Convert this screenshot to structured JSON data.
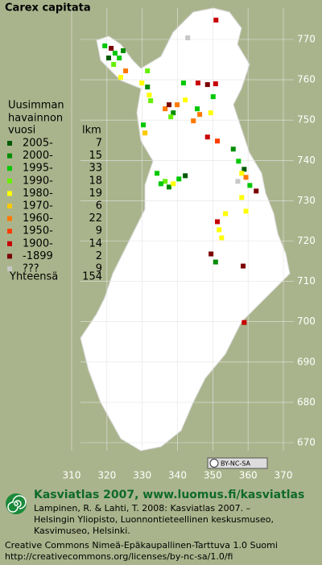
{
  "title": "Carex capitata",
  "legend": {
    "heading": [
      "Uusimman",
      "havainnon"
    ],
    "col_period": "vuosi",
    "col_count": "lkm",
    "rows": [
      {
        "period": "2005-",
        "count": "7",
        "color": "#005a00"
      },
      {
        "period": "2000-",
        "count": "15",
        "color": "#008c00"
      },
      {
        "period": "1995-",
        "count": "33",
        "color": "#00c800"
      },
      {
        "period": "1990-",
        "count": "18",
        "color": "#64f000"
      },
      {
        "period": "1980-",
        "count": "19",
        "color": "#ffff00"
      },
      {
        "period": "1970-",
        "count": "6",
        "color": "#ffc800"
      },
      {
        "period": "1960-",
        "count": "22",
        "color": "#ff7800"
      },
      {
        "period": "1950-",
        "count": "9",
        "color": "#ff3c00"
      },
      {
        "period": "1900-",
        "count": "14",
        "color": "#c80000"
      },
      {
        "period": "-1899",
        "count": "2",
        "color": "#7a0000"
      },
      {
        "period": "???",
        "count": "9",
        "color": "#c8c8c8"
      }
    ],
    "total_label": "Yhteensä",
    "total": "154"
  },
  "map": {
    "northing_ticks": [
      770,
      760,
      750,
      740,
      730,
      720,
      710,
      700,
      690,
      680,
      670
    ],
    "easting_ticks": [
      310,
      320,
      330,
      340,
      350,
      360,
      370
    ],
    "points": [
      {
        "e": 342.9,
        "n": 770.4,
        "period": 10
      },
      {
        "e": 350.9,
        "n": 774.8,
        "period": 8
      },
      {
        "e": 319.4,
        "n": 768.4,
        "period": 2
      },
      {
        "e": 321.2,
        "n": 767.8,
        "period": 9
      },
      {
        "e": 322.3,
        "n": 766.6,
        "period": 2
      },
      {
        "e": 320.5,
        "n": 765.4,
        "period": 0
      },
      {
        "e": 323.5,
        "n": 765.4,
        "period": 2
      },
      {
        "e": 321.9,
        "n": 763.8,
        "period": 3
      },
      {
        "e": 324.6,
        "n": 767.2,
        "period": 1
      },
      {
        "e": 325.3,
        "n": 762.2,
        "period": 6
      },
      {
        "e": 323.9,
        "n": 760.6,
        "period": 4
      },
      {
        "e": 331.5,
        "n": 762.2,
        "period": 3
      },
      {
        "e": 329.9,
        "n": 759.2,
        "period": 4
      },
      {
        "e": 331.5,
        "n": 758.2,
        "period": 1
      },
      {
        "e": 332.0,
        "n": 756.2,
        "period": 4
      },
      {
        "e": 332.4,
        "n": 754.8,
        "period": 3
      },
      {
        "e": 330.3,
        "n": 748.8,
        "period": 2
      },
      {
        "e": 330.8,
        "n": 746.8,
        "period": 5
      },
      {
        "e": 336.5,
        "n": 752.8,
        "period": 6
      },
      {
        "e": 337.6,
        "n": 753.8,
        "period": 9
      },
      {
        "e": 338.8,
        "n": 751.8,
        "period": 1
      },
      {
        "e": 339.9,
        "n": 753.8,
        "period": 6
      },
      {
        "e": 338.1,
        "n": 750.8,
        "period": 3
      },
      {
        "e": 345.6,
        "n": 752.8,
        "period": 2
      },
      {
        "e": 346.3,
        "n": 751.4,
        "period": 6
      },
      {
        "e": 344.5,
        "n": 749.8,
        "period": 6
      },
      {
        "e": 342.2,
        "n": 755.0,
        "period": 4
      },
      {
        "e": 341.7,
        "n": 759.2,
        "period": 2
      },
      {
        "e": 345.8,
        "n": 759.2,
        "period": 8
      },
      {
        "e": 348.5,
        "n": 758.8,
        "period": 9
      },
      {
        "e": 350.8,
        "n": 759.0,
        "period": 8
      },
      {
        "e": 350.1,
        "n": 755.8,
        "period": 2
      },
      {
        "e": 349.4,
        "n": 751.8,
        "period": 4
      },
      {
        "e": 348.5,
        "n": 745.8,
        "period": 8
      },
      {
        "e": 351.3,
        "n": 744.8,
        "period": 7
      },
      {
        "e": 355.8,
        "n": 742.8,
        "period": 1
      },
      {
        "e": 357.3,
        "n": 739.8,
        "period": 2
      },
      {
        "e": 358.9,
        "n": 737.8,
        "period": 0
      },
      {
        "e": 358.2,
        "n": 736.8,
        "period": 4
      },
      {
        "e": 359.4,
        "n": 735.8,
        "period": 6
      },
      {
        "e": 357.1,
        "n": 734.8,
        "period": 10
      },
      {
        "e": 360.5,
        "n": 733.8,
        "period": 2
      },
      {
        "e": 362.3,
        "n": 732.4,
        "period": 9
      },
      {
        "e": 358.2,
        "n": 730.8,
        "period": 4
      },
      {
        "e": 359.4,
        "n": 727.4,
        "period": 4
      },
      {
        "e": 353.6,
        "n": 726.8,
        "period": 4
      },
      {
        "e": 351.3,
        "n": 724.8,
        "period": 8
      },
      {
        "e": 351.8,
        "n": 722.8,
        "period": 4
      },
      {
        "e": 352.5,
        "n": 720.8,
        "period": 4
      },
      {
        "e": 349.5,
        "n": 716.8,
        "period": 9
      },
      {
        "e": 350.8,
        "n": 714.8,
        "period": 1
      },
      {
        "e": 358.6,
        "n": 713.8,
        "period": 9
      },
      {
        "e": 358.9,
        "n": 699.8,
        "period": 8
      },
      {
        "e": 334.2,
        "n": 736.8,
        "period": 2
      },
      {
        "e": 336.5,
        "n": 734.8,
        "period": 3
      },
      {
        "e": 337.6,
        "n": 733.4,
        "period": 1
      },
      {
        "e": 338.8,
        "n": 734.2,
        "period": 4
      },
      {
        "e": 340.4,
        "n": 735.4,
        "period": 2
      },
      {
        "e": 342.2,
        "n": 736.2,
        "period": 0
      },
      {
        "e": 335.3,
        "n": 734.2,
        "period": 2
      }
    ]
  },
  "footer": {
    "badge": "BY-NC-SA",
    "headline": "Kasviatlas 2007, www.luomus.fi/kasviatlas",
    "citation": [
      "Lampinen, R. & Lahti, T. 2008: Kasviatlas 2007. –",
      "Helsingin Yliopisto, Luonnontieteellinen keskusmuseo,",
      "Kasvimuseo, Helsinki."
    ],
    "license": [
      "Creative Commons Nimeä-Epäkaupallinen-Tarttuva 1.0 Suomi",
      "http://creativecommons.org/licenses/by-nc-sa/1.0/fi"
    ]
  }
}
